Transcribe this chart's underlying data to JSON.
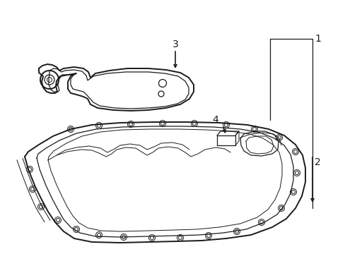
{
  "bg_color": "#ffffff",
  "line_color": "#1a1a1a",
  "lw_outer": 1.4,
  "lw_inner": 0.9,
  "lw_thin": 0.7,
  "label_fontsize": 10,
  "fig_width": 4.89,
  "fig_height": 3.6,
  "dpi": 100,
  "labels": [
    "1",
    "2",
    "3",
    "4"
  ]
}
